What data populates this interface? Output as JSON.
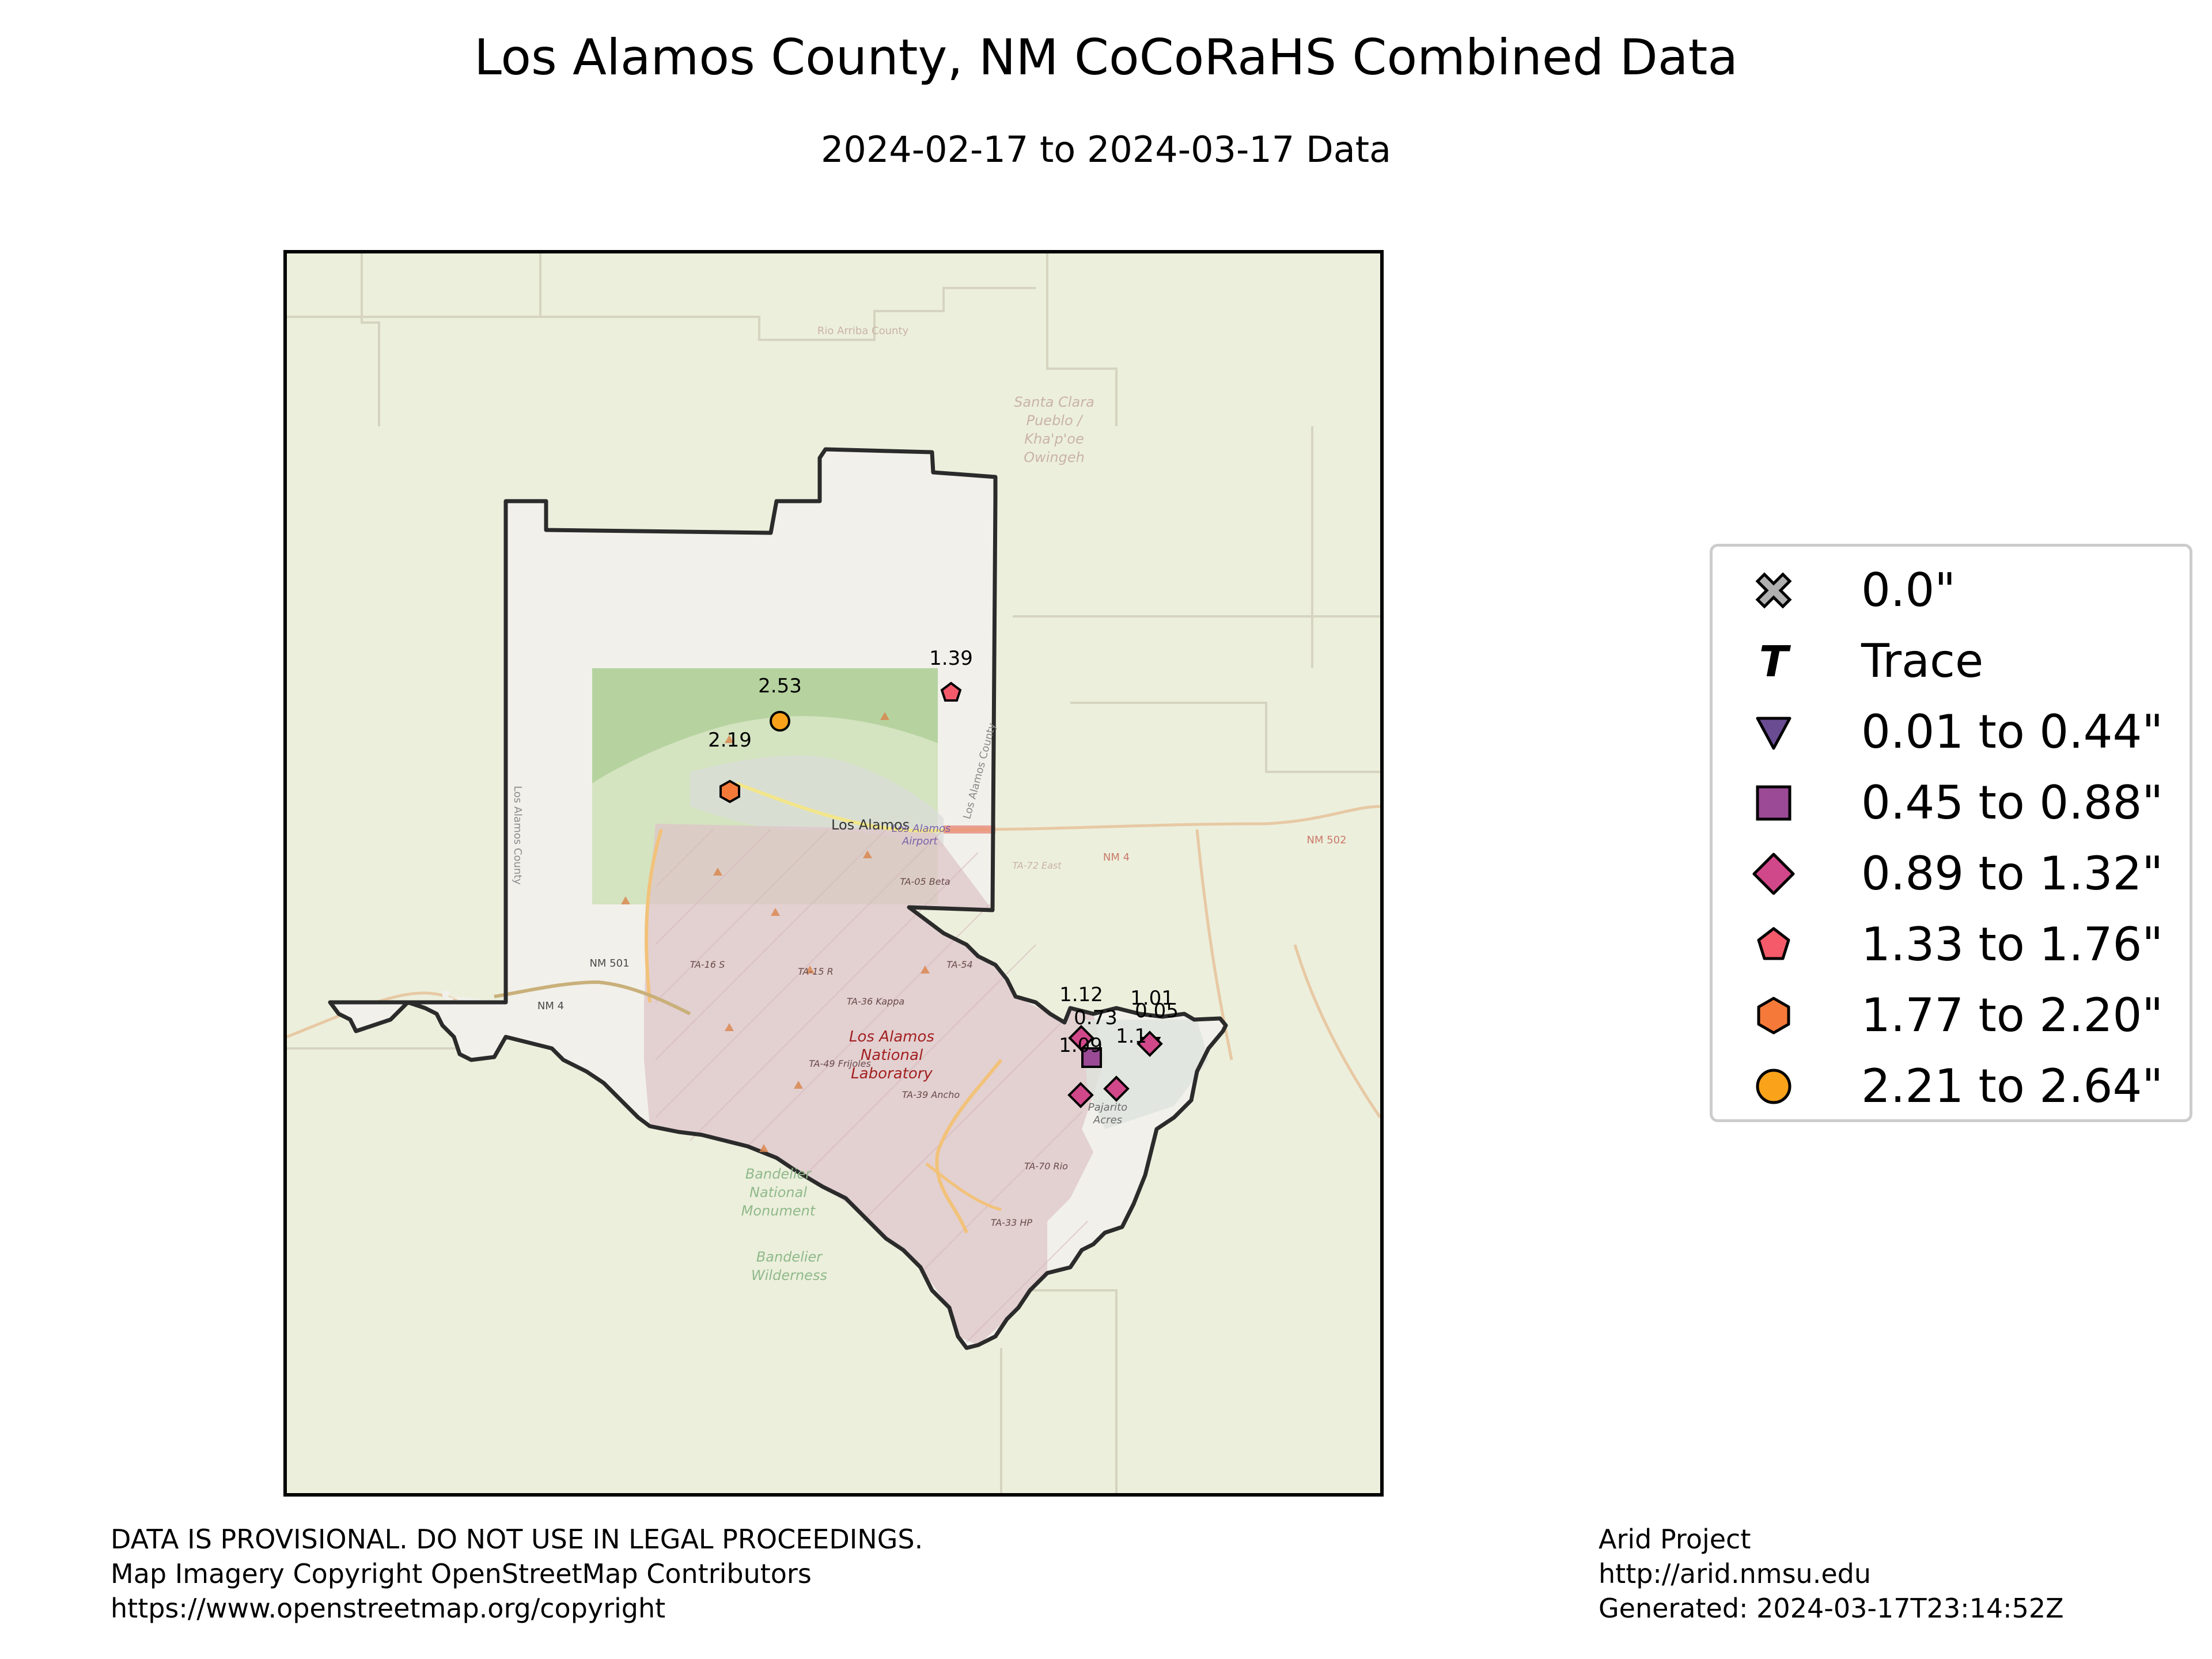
{
  "title": "Los Alamos County, NM CoCoRaHS Combined Data",
  "subtitle": "2024-02-17 to 2024-03-17 Data",
  "map": {
    "basemap_labels": {
      "town": "Los Alamos",
      "lab_line1": "Los Alamos",
      "lab_line2": "National",
      "lab_line3": "Laboratory",
      "airport_line1": "Los Alamos",
      "airport_line2": "Airport",
      "bandelier_line1": "Bandelier",
      "bandelier_line2": "National",
      "bandelier_line3": "Monument",
      "wilderness_line1": "Bandelier",
      "wilderness_line2": "Wilderness",
      "pueblo_line1": "Santa Clara",
      "pueblo_line2": "Pueblo /",
      "pueblo_line3": "Kha'p'oe",
      "pueblo_line4": "Owingeh",
      "rio_arriba": "Rio Arriba County",
      "county_vertical": "Los Alamos County",
      "county_vertical2": "Los Alamos County",
      "nm501": "NM 501",
      "nm4_west": "NM 4",
      "nm4_east": "NM 4",
      "nm502": "NM 502",
      "white_rock_line1": "Pajarito",
      "white_rock_line2": "Acres",
      "ta16": "TA-16 S",
      "ta15": "TA-15 R",
      "ta36": "TA-36 Kappa",
      "ta49": "TA-49 Frijoles",
      "ta39": "TA-39 Ancho",
      "ta54": "TA-54",
      "ta05": "TA-05 Beta",
      "ta72": "TA-72 East",
      "ta70": "TA-70 Rio",
      "ta33": "TA-33 HP"
    },
    "stations": [
      {
        "value": "2.53",
        "category": "2.21 to 2.64\"",
        "symbol": "circle"
      },
      {
        "value": "1.39",
        "category": "1.33 to 1.76\"",
        "symbol": "pentagon"
      },
      {
        "value": "2.19",
        "category": "1.77 to 2.20\"",
        "symbol": "hexagon"
      },
      {
        "value": "1.12",
        "category": "0.89 to 1.32\"",
        "symbol": "diamond"
      },
      {
        "value": "0.73",
        "category": "0.45 to 0.88\"",
        "symbol": "square"
      },
      {
        "value": "1.09",
        "category": "0.89 to 1.32\"",
        "symbol": "diamond"
      },
      {
        "value": "1.01",
        "category": "0.89 to 1.32\"",
        "symbol": "diamond"
      },
      {
        "value": "0.05",
        "category": "0.01 to 0.44\"",
        "symbol": "triangle-down"
      },
      {
        "value": "1.1",
        "category": "0.89 to 1.32\"",
        "symbol": "diamond"
      }
    ]
  },
  "legend": [
    {
      "label": "0.0\"",
      "symbol": "x",
      "color": "#b0b0b0"
    },
    {
      "label": "Trace",
      "symbol": "T",
      "color": "#000000"
    },
    {
      "label": "0.01 to 0.44\"",
      "symbol": "triangle-down",
      "color": "#6a4c93"
    },
    {
      "label": "0.45 to 0.88\"",
      "symbol": "square",
      "color": "#9b4a96"
    },
    {
      "label": "0.89 to 1.32\"",
      "symbol": "diamond",
      "color": "#d1488a"
    },
    {
      "label": "1.33 to 1.76\"",
      "symbol": "pentagon",
      "color": "#f45a6a"
    },
    {
      "label": "1.77 to 2.20\"",
      "symbol": "hexagon",
      "color": "#f57a3a"
    },
    {
      "label": "2.21 to 2.64\"",
      "symbol": "circle",
      "color": "#f9a21a"
    }
  ],
  "footer": {
    "left_line1": "DATA IS PROVISIONAL. DO NOT USE IN LEGAL PROCEEDINGS.",
    "left_line2": "Map Imagery Copyright OpenStreetMap Contributors",
    "left_line3": "https://www.openstreetmap.org/copyright",
    "right_line1": "Arid Project",
    "right_line2": "http://arid.nmsu.edu",
    "right_line3": "Generated: 2024-03-17T23:14:52Z"
  }
}
